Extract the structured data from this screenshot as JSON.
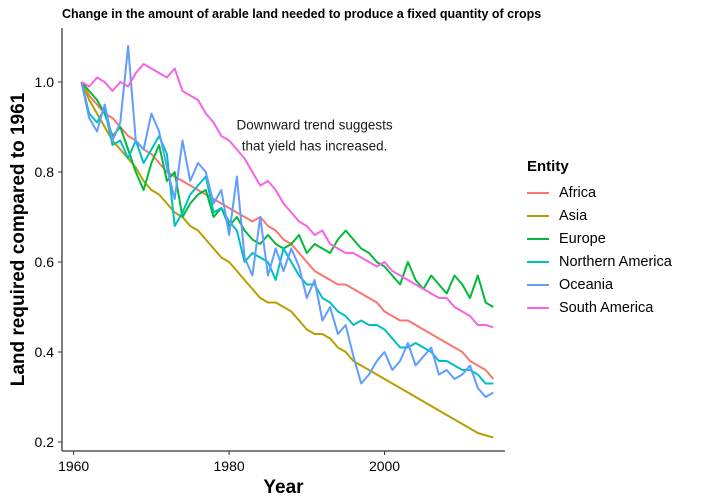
{
  "chart_data": {
    "type": "line",
    "title": "Change in the amount of arable land needed to produce a fixed quantity of crops",
    "xlabel": "Year",
    "ylabel": "Land required compared to 1961",
    "xlim": [
      1958.5,
      2015.5
    ],
    "ylim": [
      0.18,
      1.12
    ],
    "x_ticks": [
      1960,
      1980,
      2000
    ],
    "y_ticks": [
      0.2,
      0.4,
      0.6,
      0.8,
      1.0
    ],
    "y_tick_labels": [
      "0.2",
      "0.4",
      "0.6",
      "0.8",
      "1.0"
    ],
    "annotation": {
      "text": [
        "Downward trend suggests",
        "that yield has increased."
      ],
      "x": 1991,
      "y": 0.875
    },
    "legend": {
      "title": "Entity",
      "position": "right"
    },
    "x": [
      1961,
      1962,
      1963,
      1964,
      1965,
      1966,
      1967,
      1968,
      1969,
      1970,
      1971,
      1972,
      1973,
      1974,
      1975,
      1976,
      1977,
      1978,
      1979,
      1980,
      1981,
      1982,
      1983,
      1984,
      1985,
      1986,
      1987,
      1988,
      1989,
      1990,
      1991,
      1992,
      1993,
      1994,
      1995,
      1996,
      1997,
      1998,
      1999,
      2000,
      2001,
      2002,
      2003,
      2004,
      2005,
      2006,
      2007,
      2008,
      2009,
      2010,
      2011,
      2012,
      2013,
      2014
    ],
    "series": [
      {
        "name": "Africa",
        "color": "#F8766D",
        "values": [
          1.0,
          0.97,
          0.95,
          0.93,
          0.92,
          0.9,
          0.88,
          0.87,
          0.85,
          0.84,
          0.82,
          0.8,
          0.79,
          0.78,
          0.77,
          0.76,
          0.75,
          0.74,
          0.73,
          0.72,
          0.71,
          0.7,
          0.69,
          0.7,
          0.68,
          0.67,
          0.65,
          0.64,
          0.62,
          0.6,
          0.58,
          0.57,
          0.56,
          0.55,
          0.55,
          0.54,
          0.53,
          0.52,
          0.51,
          0.49,
          0.48,
          0.47,
          0.47,
          0.46,
          0.45,
          0.44,
          0.43,
          0.42,
          0.41,
          0.4,
          0.38,
          0.37,
          0.36,
          0.34
        ]
      },
      {
        "name": "Asia",
        "color": "#B79F00",
        "values": [
          1.0,
          0.96,
          0.93,
          0.9,
          0.87,
          0.85,
          0.83,
          0.81,
          0.78,
          0.76,
          0.75,
          0.73,
          0.71,
          0.7,
          0.68,
          0.67,
          0.65,
          0.63,
          0.61,
          0.6,
          0.58,
          0.56,
          0.54,
          0.52,
          0.51,
          0.51,
          0.5,
          0.49,
          0.47,
          0.45,
          0.44,
          0.44,
          0.43,
          0.41,
          0.4,
          0.38,
          0.37,
          0.36,
          0.35,
          0.34,
          0.33,
          0.32,
          0.31,
          0.3,
          0.29,
          0.28,
          0.27,
          0.26,
          0.25,
          0.24,
          0.23,
          0.22,
          0.215,
          0.21
        ]
      },
      {
        "name": "Europe",
        "color": "#00BA38",
        "values": [
          1.0,
          0.98,
          0.96,
          0.93,
          0.88,
          0.9,
          0.85,
          0.8,
          0.76,
          0.82,
          0.86,
          0.78,
          0.8,
          0.7,
          0.73,
          0.75,
          0.76,
          0.7,
          0.72,
          0.68,
          0.7,
          0.67,
          0.65,
          0.64,
          0.66,
          0.64,
          0.63,
          0.64,
          0.66,
          0.62,
          0.64,
          0.63,
          0.62,
          0.65,
          0.67,
          0.65,
          0.63,
          0.62,
          0.6,
          0.59,
          0.57,
          0.55,
          0.6,
          0.56,
          0.54,
          0.57,
          0.55,
          0.53,
          0.57,
          0.55,
          0.52,
          0.57,
          0.51,
          0.5
        ]
      },
      {
        "name": "Northern America",
        "color": "#00BFC4",
        "values": [
          1.0,
          0.93,
          0.91,
          0.94,
          0.86,
          0.87,
          0.83,
          0.87,
          0.82,
          0.85,
          0.88,
          0.84,
          0.68,
          0.71,
          0.75,
          0.77,
          0.79,
          0.71,
          0.72,
          0.69,
          0.67,
          0.6,
          0.62,
          0.61,
          0.6,
          0.56,
          0.63,
          0.6,
          0.57,
          0.55,
          0.55,
          0.52,
          0.51,
          0.49,
          0.48,
          0.46,
          0.47,
          0.46,
          0.46,
          0.45,
          0.43,
          0.41,
          0.41,
          0.42,
          0.41,
          0.4,
          0.38,
          0.38,
          0.37,
          0.36,
          0.36,
          0.35,
          0.33,
          0.33
        ]
      },
      {
        "name": "Oceania",
        "color": "#619CFF",
        "values": [
          1.0,
          0.92,
          0.89,
          0.95,
          0.87,
          0.91,
          1.08,
          0.87,
          0.85,
          0.93,
          0.89,
          0.81,
          0.74,
          0.87,
          0.78,
          0.82,
          0.8,
          0.73,
          0.76,
          0.66,
          0.79,
          0.61,
          0.57,
          0.7,
          0.57,
          0.63,
          0.58,
          0.63,
          0.59,
          0.52,
          0.56,
          0.47,
          0.5,
          0.44,
          0.46,
          0.39,
          0.33,
          0.35,
          0.38,
          0.4,
          0.36,
          0.38,
          0.42,
          0.37,
          0.39,
          0.41,
          0.35,
          0.36,
          0.34,
          0.35,
          0.37,
          0.32,
          0.3,
          0.31
        ]
      },
      {
        "name": "South America",
        "color": "#F564E3",
        "values": [
          1.0,
          0.99,
          1.01,
          1.0,
          0.98,
          1.0,
          0.99,
          1.02,
          1.04,
          1.03,
          1.02,
          1.01,
          1.03,
          0.98,
          0.97,
          0.96,
          0.93,
          0.91,
          0.88,
          0.87,
          0.85,
          0.83,
          0.8,
          0.77,
          0.78,
          0.76,
          0.73,
          0.71,
          0.69,
          0.68,
          0.66,
          0.67,
          0.64,
          0.63,
          0.62,
          0.62,
          0.61,
          0.6,
          0.59,
          0.6,
          0.58,
          0.57,
          0.56,
          0.55,
          0.54,
          0.53,
          0.52,
          0.52,
          0.5,
          0.49,
          0.48,
          0.46,
          0.46,
          0.455
        ]
      }
    ]
  }
}
